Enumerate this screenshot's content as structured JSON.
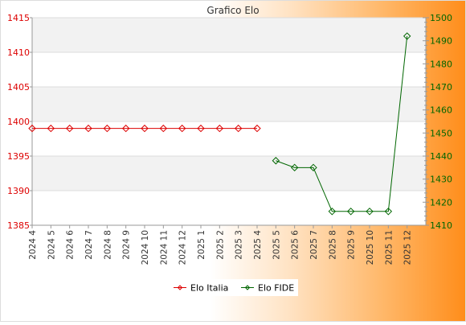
{
  "chart_data": {
    "type": "line",
    "title": "Grafico Elo",
    "categories": [
      "2024 4",
      "2024 5",
      "2024 6",
      "2024 7",
      "2024 8",
      "2024 9",
      "2024 10",
      "2024 11",
      "2024 12",
      "2025 1",
      "2025 2",
      "2025 3",
      "2025 4",
      "2025 5",
      "2025 6",
      "2025 7",
      "2025 8",
      "2025 9",
      "2025 10",
      "2025 11",
      "2025 12"
    ],
    "y_left": {
      "min": 1385,
      "max": 1415,
      "ticks": [
        1385,
        1390,
        1395,
        1400,
        1405,
        1410,
        1415
      ],
      "color": "#dd0000"
    },
    "y_right": {
      "min": 1410,
      "max": 1500,
      "ticks": [
        1410,
        1420,
        1430,
        1440,
        1450,
        1460,
        1470,
        1480,
        1490,
        1500
      ],
      "color": "#006600"
    },
    "grid": true,
    "legend_position": "bottom",
    "series": [
      {
        "name": "Elo Italia",
        "axis": "left",
        "color": "#dd0000",
        "values": [
          1399,
          1399,
          1399,
          1399,
          1399,
          1399,
          1399,
          1399,
          1399,
          1399,
          1399,
          1399,
          1399,
          null,
          null,
          null,
          null,
          null,
          null,
          null,
          null
        ]
      },
      {
        "name": "Elo FIDE",
        "axis": "right",
        "color": "#006600",
        "values": [
          null,
          null,
          null,
          null,
          null,
          null,
          null,
          null,
          null,
          null,
          null,
          null,
          null,
          1438,
          1435,
          1435,
          1416,
          1416,
          1416,
          1416,
          1492
        ]
      }
    ]
  }
}
